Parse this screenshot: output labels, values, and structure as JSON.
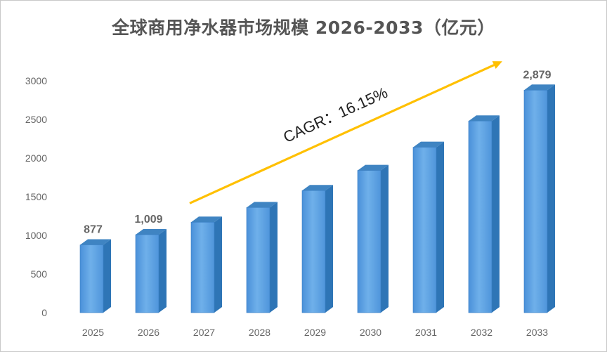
{
  "chart_data": {
    "type": "bar",
    "title": "全球商用净水器市场规模 2026-2033（亿元）",
    "categories": [
      "2025",
      "2026",
      "2027",
      "2028",
      "2029",
      "2030",
      "2031",
      "2032",
      "2033"
    ],
    "values": [
      877,
      1009,
      1170,
      1360,
      1580,
      1840,
      2140,
      2480,
      2879
    ],
    "data_labels": [
      {
        "index": 0,
        "text": "877"
      },
      {
        "index": 1,
        "text": "1,009"
      },
      {
        "index": 8,
        "text": "2,879"
      }
    ],
    "yticks": [
      "0",
      "500",
      "1000",
      "1500",
      "2000",
      "2500",
      "3000"
    ],
    "ylim": [
      0,
      3000
    ],
    "grid": false,
    "legend": "none",
    "annotation": {
      "text": "CAGR：16.15%",
      "from_index": 2,
      "to_index": 7
    },
    "colors": {
      "bar_front": "#5b9bd5",
      "bar_side": "#2e75b6",
      "bar_top": "#3f84c2",
      "arrow": "#ffc000",
      "text": "#666666"
    }
  }
}
